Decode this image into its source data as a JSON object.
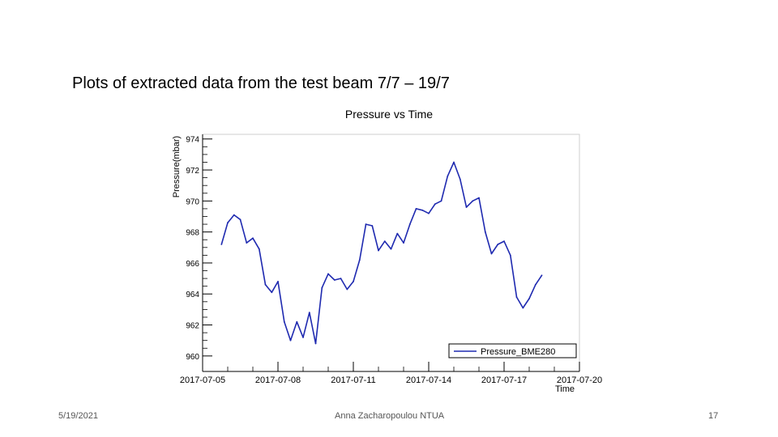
{
  "slide": {
    "title": "Plots of extracted data from the test beam 7/7 – 19/7",
    "footer_date": "5/19/2021",
    "footer_author": "Anna Zacharopoulou NTUA",
    "footer_page": "17"
  },
  "colors": {
    "series": "#1f2ab0",
    "axis": "#000000"
  },
  "chart_data": {
    "type": "line",
    "title": "Pressure vs Time",
    "xlabel": "Time",
    "ylabel": "Pressure(mbar)",
    "xlim": [
      "2017-07-05 00:00",
      "2017-07-20 00:00"
    ],
    "ylim": [
      959,
      974.3
    ],
    "x_ticks": [
      "2017-07-05",
      "2017-07-08",
      "2017-07-11",
      "2017-07-14",
      "2017-07-17",
      "2017-07-20"
    ],
    "y_ticks": [
      "960",
      "962",
      "964",
      "966",
      "968",
      "970",
      "972",
      "974"
    ],
    "legend": {
      "placement": "bottom-right",
      "entries": [
        "Pressure_BME280"
      ]
    },
    "series": [
      {
        "name": "Pressure_BME280",
        "x": [
          "2017-07-05 18:00",
          "2017-07-06 00:00",
          "2017-07-06 06:00",
          "2017-07-06 12:00",
          "2017-07-06 18:00",
          "2017-07-07 00:00",
          "2017-07-07 06:00",
          "2017-07-07 12:00",
          "2017-07-07 18:00",
          "2017-07-08 00:00",
          "2017-07-08 06:00",
          "2017-07-08 12:00",
          "2017-07-08 18:00",
          "2017-07-09 00:00",
          "2017-07-09 06:00",
          "2017-07-09 12:00",
          "2017-07-09 18:00",
          "2017-07-10 00:00",
          "2017-07-10 06:00",
          "2017-07-10 12:00",
          "2017-07-10 18:00",
          "2017-07-11 00:00",
          "2017-07-11 06:00",
          "2017-07-11 12:00",
          "2017-07-11 18:00",
          "2017-07-12 00:00",
          "2017-07-12 06:00",
          "2017-07-12 12:00",
          "2017-07-12 18:00",
          "2017-07-13 00:00",
          "2017-07-13 06:00",
          "2017-07-13 12:00",
          "2017-07-13 18:00",
          "2017-07-14 00:00",
          "2017-07-14 06:00",
          "2017-07-14 12:00",
          "2017-07-14 18:00",
          "2017-07-15 00:00",
          "2017-07-15 06:00",
          "2017-07-15 12:00",
          "2017-07-15 18:00",
          "2017-07-16 00:00",
          "2017-07-16 06:00",
          "2017-07-16 12:00",
          "2017-07-16 18:00",
          "2017-07-17 00:00",
          "2017-07-17 06:00",
          "2017-07-17 12:00",
          "2017-07-17 18:00",
          "2017-07-18 00:00",
          "2017-07-18 06:00",
          "2017-07-18 12:00"
        ],
        "values": [
          967.2,
          968.6,
          969.1,
          968.8,
          967.3,
          967.6,
          966.9,
          964.6,
          964.1,
          964.8,
          962.2,
          961.0,
          962.2,
          961.2,
          962.8,
          960.8,
          964.4,
          965.3,
          964.9,
          965.0,
          964.3,
          964.8,
          966.2,
          968.5,
          968.4,
          966.8,
          967.4,
          966.9,
          967.9,
          967.3,
          968.5,
          969.5,
          969.4,
          969.2,
          969.8,
          970.0,
          971.6,
          972.5,
          971.4,
          969.6,
          970.0,
          970.2,
          968.0,
          966.6,
          967.2,
          967.4,
          966.5,
          963.8,
          963.1,
          963.7,
          964.6,
          965.2
        ]
      }
    ]
  }
}
